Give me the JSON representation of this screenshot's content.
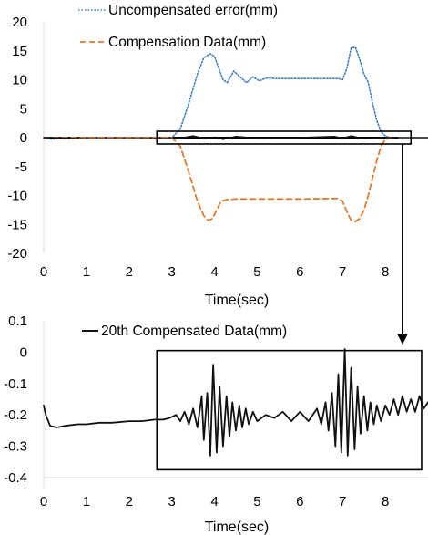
{
  "colors": {
    "uncompensated": "#3f7fc4",
    "compensation": "#e07b2e",
    "compensated": "#111111",
    "zero_line": "#000000",
    "highlight_box": "#000000"
  },
  "chart_data": [
    {
      "type": "line",
      "title": "",
      "xlabel": "Time(sec)",
      "ylabel": "",
      "xlim": [
        0,
        9
      ],
      "ylim": [
        -20,
        20
      ],
      "x_ticks": [
        0,
        1,
        2,
        3,
        4,
        5,
        6,
        7,
        8
      ],
      "y_ticks": [
        20,
        15,
        10,
        5,
        0,
        -5,
        -10,
        -15,
        -20
      ],
      "x_tick_labels": [
        "0",
        "1",
        "2",
        "3",
        "4",
        "5",
        "6",
        "7",
        "8"
      ],
      "y_tick_labels": [
        "20",
        "15",
        "10",
        "5",
        "0",
        "-5",
        "-10",
        "-15",
        "-20"
      ],
      "grid": false,
      "legend_placement": "top-center",
      "series": [
        {
          "name": "Uncompensated error(mm)",
          "style": "dotted",
          "x": [
            0,
            0.2,
            0.3,
            0.5,
            1,
            2,
            2.8,
            3.0,
            3.2,
            3.4,
            3.6,
            3.75,
            3.9,
            4.0,
            4.1,
            4.2,
            4.3,
            4.45,
            4.6,
            4.75,
            4.9,
            5.05,
            5.2,
            5.5,
            6.0,
            6.5,
            6.9,
            7.0,
            7.1,
            7.2,
            7.3,
            7.4,
            7.5,
            7.6,
            7.7,
            7.8,
            7.9,
            8.0,
            8.1,
            8.2
          ],
          "y": [
            0,
            -0.3,
            0,
            -0.2,
            0,
            0,
            0,
            0,
            1.5,
            6,
            11,
            13.8,
            14.5,
            14,
            12,
            10,
            9.5,
            11.5,
            10.5,
            9.5,
            10.5,
            9.8,
            10.3,
            10.2,
            10.2,
            10.2,
            10.2,
            10.0,
            12,
            15.5,
            15.6,
            13.5,
            11,
            9.5,
            6,
            3,
            1,
            0.3,
            0,
            0
          ]
        },
        {
          "name": "Compensation Data(mm)",
          "style": "dashed",
          "x": [
            0,
            1,
            2,
            2.8,
            3.0,
            3.2,
            3.4,
            3.6,
            3.75,
            3.85,
            3.95,
            4.05,
            4.15,
            4.3,
            4.5,
            5,
            6,
            6.9,
            7.0,
            7.1,
            7.2,
            7.3,
            7.4,
            7.5,
            7.6,
            7.7,
            7.8,
            7.9,
            8.0,
            8.1,
            8.2
          ],
          "y": [
            0,
            0,
            0,
            0,
            0,
            -1.5,
            -6,
            -11,
            -13.5,
            -14.3,
            -14,
            -12.5,
            -11,
            -10.7,
            -10.6,
            -10.6,
            -10.6,
            -10.5,
            -11,
            -12.8,
            -14.3,
            -14.5,
            -14,
            -12.5,
            -10,
            -7,
            -4,
            -1.5,
            -0.3,
            0,
            0
          ]
        },
        {
          "name": "",
          "style": "solid",
          "x": [
            0,
            1,
            2,
            3,
            3.2,
            3.5,
            3.8,
            4.0,
            4.2,
            4.5,
            5,
            6,
            6.8,
            7.0,
            7.2,
            7.5,
            8,
            8.5,
            9
          ],
          "y": [
            0,
            -0.2,
            -0.2,
            -0.15,
            -0.1,
            0.3,
            -0.2,
            0.1,
            -0.3,
            0.2,
            -0.1,
            0,
            0.2,
            -0.1,
            0.3,
            -0.2,
            0,
            0,
            0
          ]
        }
      ]
    },
    {
      "type": "line",
      "title": "",
      "xlabel": "Time(sec)",
      "ylabel": "",
      "xlim": [
        0,
        9
      ],
      "ylim": [
        -0.4,
        0.1
      ],
      "x_ticks": [
        0,
        1,
        2,
        3,
        4,
        5,
        6,
        7,
        8
      ],
      "y_ticks": [
        0.1,
        0,
        -0.1,
        -0.2,
        -0.3,
        -0.4
      ],
      "x_tick_labels": [
        "0",
        "1",
        "2",
        "3",
        "4",
        "5",
        "6",
        "7",
        "8"
      ],
      "y_tick_labels": [
        "0.1",
        "0",
        "-0.1",
        "-0.2",
        "-0.3",
        "-0.4"
      ],
      "grid": false,
      "legend_placement": "top-center",
      "series": [
        {
          "name": "20th Compensated Data(mm)",
          "style": "solid",
          "x": [
            0,
            0.05,
            0.15,
            0.3,
            0.5,
            0.8,
            1.0,
            1.3,
            1.6,
            2.0,
            2.3,
            2.6,
            2.8,
            2.95,
            3.1,
            3.2,
            3.3,
            3.4,
            3.5,
            3.6,
            3.7,
            3.75,
            3.83,
            3.9,
            3.97,
            4.05,
            4.12,
            4.2,
            4.28,
            4.35,
            4.42,
            4.5,
            4.58,
            4.65,
            4.73,
            4.8,
            4.9,
            5.0,
            5.2,
            5.4,
            5.6,
            5.8,
            6.0,
            6.2,
            6.4,
            6.5,
            6.6,
            6.67,
            6.75,
            6.83,
            6.9,
            6.97,
            7.05,
            7.12,
            7.2,
            7.28,
            7.35,
            7.42,
            7.5,
            7.58,
            7.65,
            7.73,
            7.8,
            7.9,
            8.0,
            8.1,
            8.2,
            8.3,
            8.4,
            8.5,
            8.6,
            8.7,
            8.8,
            8.9,
            9.0
          ],
          "y": [
            -0.17,
            -0.2,
            -0.235,
            -0.24,
            -0.235,
            -0.23,
            -0.23,
            -0.225,
            -0.225,
            -0.22,
            -0.22,
            -0.215,
            -0.215,
            -0.21,
            -0.2,
            -0.22,
            -0.19,
            -0.23,
            -0.18,
            -0.24,
            -0.14,
            -0.28,
            -0.13,
            -0.33,
            -0.04,
            -0.32,
            -0.11,
            -0.3,
            -0.14,
            -0.27,
            -0.16,
            -0.25,
            -0.17,
            -0.24,
            -0.18,
            -0.23,
            -0.19,
            -0.22,
            -0.2,
            -0.21,
            -0.19,
            -0.22,
            -0.19,
            -0.22,
            -0.18,
            -0.23,
            -0.16,
            -0.25,
            -0.13,
            -0.3,
            -0.07,
            -0.32,
            0.01,
            -0.33,
            -0.05,
            -0.31,
            -0.11,
            -0.26,
            -0.14,
            -0.25,
            -0.16,
            -0.23,
            -0.17,
            -0.22,
            -0.17,
            -0.2,
            -0.15,
            -0.2,
            -0.14,
            -0.19,
            -0.15,
            -0.19,
            -0.14,
            -0.18,
            -0.16
          ]
        }
      ]
    }
  ]
}
